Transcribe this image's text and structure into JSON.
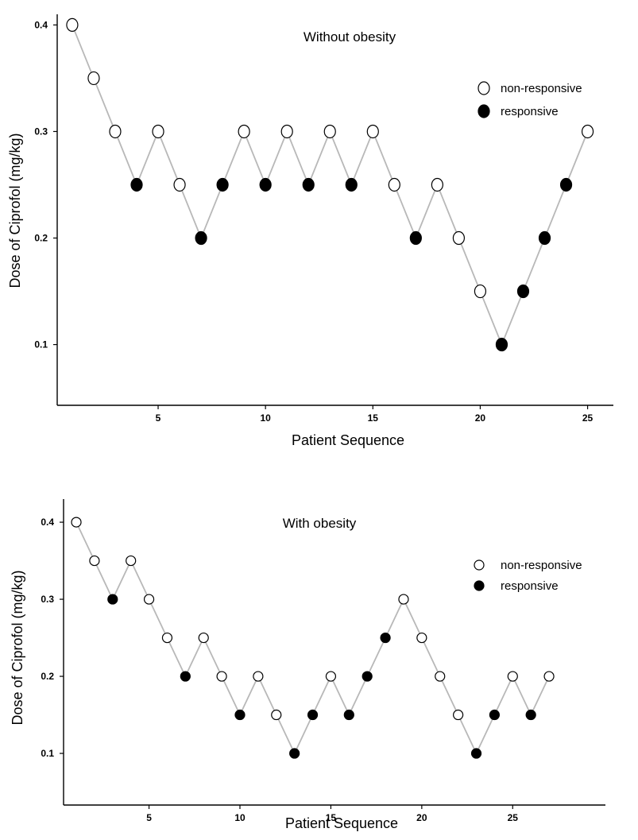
{
  "chart_data": [
    {
      "type": "scatter",
      "title": "Without obesity",
      "xlabel": "Patient Sequence",
      "ylabel": "Dose of Ciprofol (mg/kg)",
      "xlim": [
        0.3,
        26.2
      ],
      "ylim": [
        0.043,
        0.41
      ],
      "xticks": [
        5,
        10,
        15,
        20,
        25
      ],
      "yticks": [
        0.1,
        0.2,
        0.3,
        0.4
      ],
      "xtick_labels": [
        "5",
        "10",
        "15",
        "20",
        "25"
      ],
      "ytick_labels": [
        "0.1",
        "0.2",
        "0.3",
        "0.4"
      ],
      "legend": {
        "position": "top-right",
        "non_responsive": "non-responsive",
        "responsive": "responsive"
      },
      "x": [
        1,
        2,
        3,
        4,
        5,
        6,
        7,
        8,
        9,
        10,
        11,
        12,
        13,
        14,
        15,
        16,
        17,
        18,
        19,
        20,
        21,
        22,
        23,
        24,
        25
      ],
      "y": [
        0.4,
        0.35,
        0.3,
        0.25,
        0.3,
        0.25,
        0.2,
        0.25,
        0.3,
        0.25,
        0.3,
        0.25,
        0.3,
        0.25,
        0.3,
        0.25,
        0.2,
        0.25,
        0.2,
        0.15,
        0.1,
        0.15,
        0.2,
        0.25,
        0.3
      ],
      "responsive": [
        0,
        0,
        0,
        1,
        0,
        0,
        1,
        1,
        0,
        1,
        0,
        1,
        0,
        1,
        0,
        0,
        1,
        0,
        0,
        0,
        1,
        1,
        1,
        1,
        0
      ]
    },
    {
      "type": "scatter",
      "title": "With obesity",
      "xlabel": "Patient Sequence",
      "ylabel": "Dose of Ciprofol (mg/kg)",
      "xlim": [
        0.3,
        30.1
      ],
      "ylim": [
        0.033,
        0.43
      ],
      "xticks": [
        5,
        10,
        15,
        20,
        25
      ],
      "yticks": [
        0.1,
        0.2,
        0.3,
        0.4
      ],
      "xtick_labels": [
        "5",
        "10",
        "15",
        "20",
        "25"
      ],
      "ytick_labels": [
        "0.1",
        "0.2",
        "0.3",
        "0.4"
      ],
      "legend": {
        "position": "top-right",
        "non_responsive": "non-responsive",
        "responsive": "responsive"
      },
      "x": [
        1,
        2,
        3,
        4,
        5,
        6,
        7,
        8,
        9,
        10,
        11,
        12,
        13,
        14,
        15,
        16,
        17,
        18,
        19,
        20,
        21,
        22,
        23,
        24,
        25,
        26,
        27
      ],
      "y": [
        0.4,
        0.35,
        0.3,
        0.35,
        0.3,
        0.25,
        0.2,
        0.25,
        0.2,
        0.15,
        0.2,
        0.15,
        0.1,
        0.15,
        0.2,
        0.15,
        0.2,
        0.25,
        0.3,
        0.25,
        0.2,
        0.15,
        0.1,
        0.15,
        0.2,
        0.15,
        0.2
      ],
      "responsive": [
        0,
        0,
        1,
        0,
        0,
        0,
        1,
        0,
        0,
        1,
        0,
        0,
        1,
        1,
        0,
        1,
        1,
        1,
        0,
        0,
        0,
        0,
        1,
        1,
        0,
        1,
        0
      ]
    }
  ]
}
